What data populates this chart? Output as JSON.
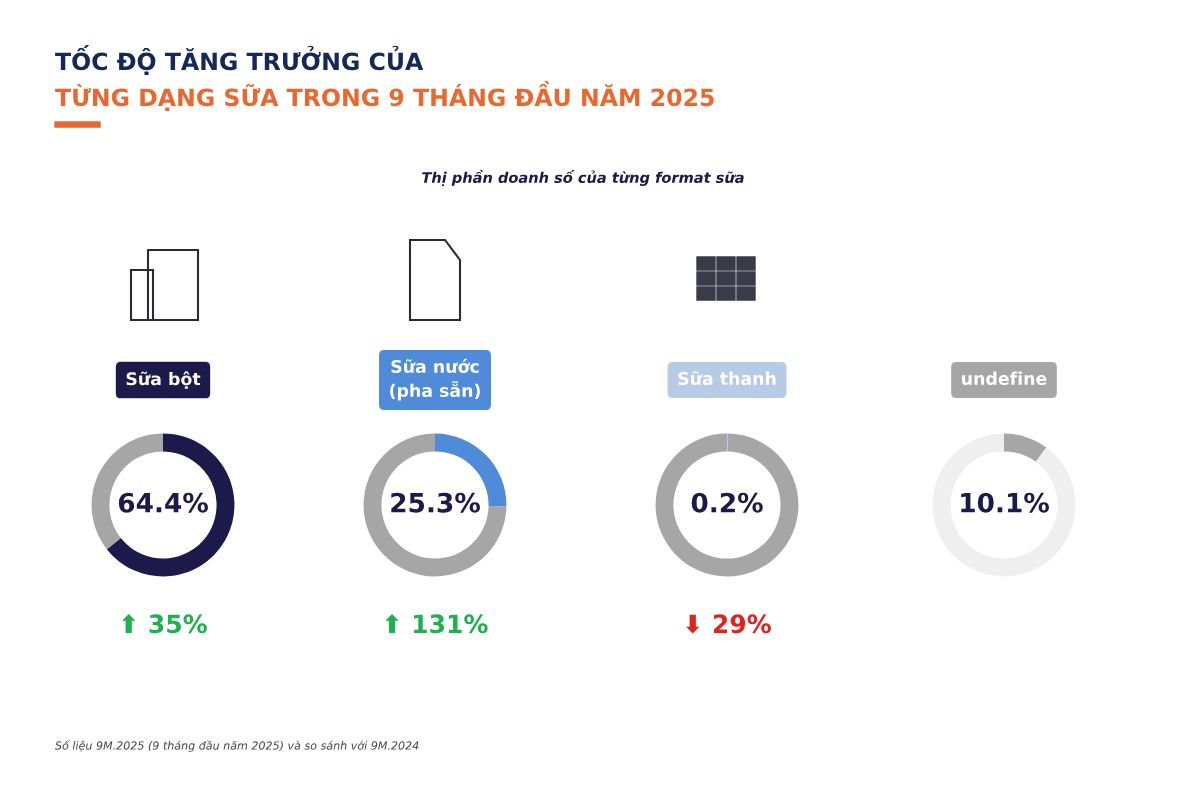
{
  "chart_data": [
    {
      "type": "other",
      "title": "TỐC ĐỘ TĂNG TRƯỞNG CỦA",
      "subtitle": "TỪNG DẠNG SỮA TRONG 9 THÁNG ĐẦU NĂM 2025",
      "annotations": [
        "Thị phần doanh số của từng format sữa",
        "Số liệu 9M.2025 (9 tháng đầu năm 2025) và so sánh với 9M.2024"
      ]
    },
    {
      "type": "donut",
      "title": "Sữa bột",
      "categories": [
        null,
        null
      ],
      "values": [
        64.4,
        35.6
      ],
      "colors": [
        "#1c1a4b",
        "#a6a6a6"
      ],
      "value_labels": [
        "64.4%",
        null
      ],
      "annotations": [
        "⬆ 35%"
      ]
    },
    {
      "type": "donut",
      "title": "Sữa nước\n(pha sẵn)",
      "categories": [
        null,
        null
      ],
      "values": [
        25.3,
        74.7
      ],
      "colors": [
        "#4f8bd9",
        "#a6a6a6"
      ],
      "value_labels": [
        "25.3%",
        null
      ],
      "annotations": [
        "⬆ 131%"
      ]
    },
    {
      "type": "donut",
      "title": "Sữa thanh",
      "categories": [
        null,
        null
      ],
      "values": [
        0.2,
        99.8
      ],
      "colors": [
        "#b7cbe6",
        "#a6a6a6"
      ],
      "value_labels": [
        "0.2%",
        null
      ],
      "annotations": [
        "⬇ 29%"
      ]
    },
    {
      "type": "donut",
      "title": "undefine",
      "categories": [
        null,
        null
      ],
      "values": [
        10.1,
        89.9
      ],
      "colors": [
        "#a6a6a6",
        "#efefef"
      ],
      "value_labels": [
        "10.1%",
        null
      ]
    }
  ]
}
